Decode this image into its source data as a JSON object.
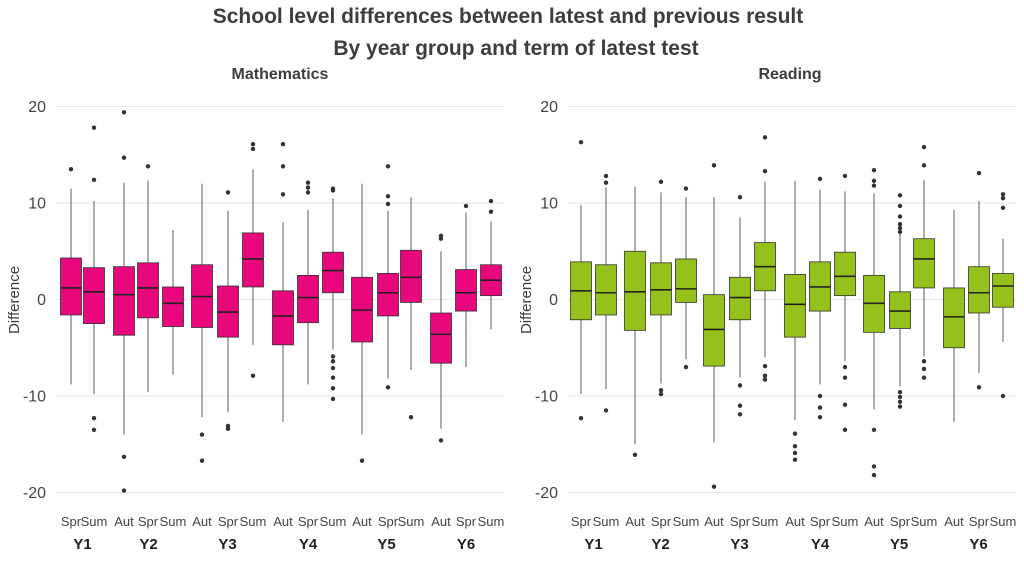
{
  "figure": {
    "title": "School level differences between latest and previous result",
    "subtitle": "By year group and term of latest test"
  },
  "chart_data": [
    {
      "type": "box",
      "title": "Mathematics",
      "ylabel": "Difference",
      "ylim": [
        -22,
        21
      ],
      "yticks": [
        20,
        10,
        0,
        -10,
        -20
      ],
      "grid": true,
      "color": "#e8077c",
      "categories": [
        {
          "year": "Y1",
          "term": "Spr",
          "whislo": -8.8,
          "q1": -1.6,
          "med": 1.2,
          "q3": 4.3,
          "whishi": 11.5,
          "fliers": [
            13.5
          ]
        },
        {
          "year": "Y1",
          "term": "Sum",
          "whislo": -9.8,
          "q1": -2.5,
          "med": 0.8,
          "q3": 3.3,
          "whishi": 10.2,
          "fliers": [
            17.8,
            12.4,
            -12.3,
            -13.5
          ]
        },
        {
          "year": "Y2",
          "term": "Aut",
          "whislo": -14.0,
          "q1": -3.7,
          "med": 0.5,
          "q3": 3.4,
          "whishi": 12.1,
          "fliers": [
            19.4,
            14.7,
            -16.3,
            -19.8
          ]
        },
        {
          "year": "Y2",
          "term": "Spr",
          "whislo": -9.6,
          "q1": -1.9,
          "med": 1.2,
          "q3": 3.8,
          "whishi": 12.3,
          "fliers": [
            13.8
          ]
        },
        {
          "year": "Y2",
          "term": "Sum",
          "whislo": -7.8,
          "q1": -2.8,
          "med": -0.4,
          "q3": 1.3,
          "whishi": 7.2,
          "fliers": []
        },
        {
          "year": "Y3",
          "term": "Aut",
          "whislo": -12.2,
          "q1": -2.9,
          "med": 0.3,
          "q3": 3.6,
          "whishi": 12.0,
          "fliers": [
            -14.0,
            -16.7
          ]
        },
        {
          "year": "Y3",
          "term": "Spr",
          "whislo": -11.7,
          "q1": -3.9,
          "med": -1.3,
          "q3": 1.4,
          "whishi": 9.2,
          "fliers": [
            11.1,
            -13.1,
            -13.4
          ]
        },
        {
          "year": "Y3",
          "term": "Sum",
          "whislo": -4.7,
          "q1": 1.3,
          "med": 4.2,
          "q3": 6.9,
          "whishi": 13.5,
          "fliers": [
            16.1,
            15.6,
            -7.9
          ]
        },
        {
          "year": "Y4",
          "term": "Aut",
          "whislo": -12.7,
          "q1": -4.7,
          "med": -1.7,
          "q3": 0.9,
          "whishi": 8.0,
          "fliers": [
            16.1,
            13.8,
            10.9
          ]
        },
        {
          "year": "Y4",
          "term": "Spr",
          "whislo": -8.8,
          "q1": -2.4,
          "med": 0.2,
          "q3": 2.5,
          "whishi": 9.3,
          "fliers": [
            12.1,
            11.6,
            11.1
          ]
        },
        {
          "year": "Y4",
          "term": "Sum",
          "whislo": -5.2,
          "q1": 0.7,
          "med": 3.0,
          "q3": 4.9,
          "whishi": 10.5,
          "fliers": [
            11.5,
            11.3,
            -5.9,
            -6.4,
            -7.1,
            -8.1,
            -9.2,
            -10.3
          ]
        },
        {
          "year": "Y5",
          "term": "Aut",
          "whislo": -14.0,
          "q1": -4.4,
          "med": -1.1,
          "q3": 2.3,
          "whishi": 12.0,
          "fliers": [
            -16.7
          ]
        },
        {
          "year": "Y5",
          "term": "Spr",
          "whislo": -8.2,
          "q1": -1.7,
          "med": 0.7,
          "q3": 2.7,
          "whishi": 9.2,
          "fliers": [
            13.8,
            10.7,
            9.9,
            -9.1
          ]
        },
        {
          "year": "Y5",
          "term": "Sum",
          "whislo": -7.3,
          "q1": -0.3,
          "med": 2.3,
          "q3": 5.1,
          "whishi": 10.6,
          "fliers": [
            -12.2
          ]
        },
        {
          "year": "Y6",
          "term": "Aut",
          "whislo": -13.4,
          "q1": -6.6,
          "med": -3.6,
          "q3": -1.4,
          "whishi": 5.0,
          "fliers": [
            6.6,
            6.3,
            -14.6
          ]
        },
        {
          "year": "Y6",
          "term": "Spr",
          "whislo": -7.0,
          "q1": -1.2,
          "med": 0.7,
          "q3": 3.1,
          "whishi": 9.0,
          "fliers": [
            9.7
          ]
        },
        {
          "year": "Y6",
          "term": "Sum",
          "whislo": -3.1,
          "q1": 0.4,
          "med": 2.0,
          "q3": 3.6,
          "whishi": 8.1,
          "fliers": [
            10.2,
            9.1
          ]
        }
      ]
    },
    {
      "type": "box",
      "title": "Reading",
      "ylabel": "Difference",
      "ylim": [
        -22,
        21
      ],
      "yticks": [
        20,
        10,
        0,
        -10,
        -20
      ],
      "grid": true,
      "color": "#94c11c",
      "categories": [
        {
          "year": "Y1",
          "term": "Spr",
          "whislo": -9.8,
          "q1": -2.1,
          "med": 0.9,
          "q3": 3.9,
          "whishi": 9.8,
          "fliers": [
            16.3,
            -12.3
          ]
        },
        {
          "year": "Y1",
          "term": "Sum",
          "whislo": -9.3,
          "q1": -1.6,
          "med": 0.7,
          "q3": 3.6,
          "whishi": 11.6,
          "fliers": [
            12.8,
            12.1,
            -11.5
          ]
        },
        {
          "year": "Y2",
          "term": "Aut",
          "whislo": -15.0,
          "q1": -3.2,
          "med": 0.8,
          "q3": 5.0,
          "whishi": 11.7,
          "fliers": [
            -16.1
          ]
        },
        {
          "year": "Y2",
          "term": "Spr",
          "whislo": -8.7,
          "q1": -1.6,
          "med": 1.0,
          "q3": 3.8,
          "whishi": 11.1,
          "fliers": [
            12.2,
            -9.4,
            -9.8
          ]
        },
        {
          "year": "Y2",
          "term": "Sum",
          "whislo": -6.2,
          "q1": -0.3,
          "med": 1.1,
          "q3": 4.2,
          "whishi": 10.6,
          "fliers": [
            11.5,
            -7.0
          ]
        },
        {
          "year": "Y3",
          "term": "Aut",
          "whislo": -14.8,
          "q1": -6.9,
          "med": -3.1,
          "q3": 0.5,
          "whishi": 10.6,
          "fliers": [
            13.9,
            -19.4
          ]
        },
        {
          "year": "Y3",
          "term": "Spr",
          "whislo": -8.1,
          "q1": -2.1,
          "med": 0.2,
          "q3": 2.3,
          "whishi": 8.5,
          "fliers": [
            10.6,
            -8.9,
            -11.0,
            -11.9
          ]
        },
        {
          "year": "Y3",
          "term": "Sum",
          "whislo": -6.0,
          "q1": 0.9,
          "med": 3.4,
          "q3": 5.9,
          "whishi": 12.2,
          "fliers": [
            16.8,
            13.3,
            -6.9,
            -7.9,
            -8.3
          ]
        },
        {
          "year": "Y4",
          "term": "Aut",
          "whislo": -12.5,
          "q1": -3.9,
          "med": -0.5,
          "q3": 2.6,
          "whishi": 12.3,
          "fliers": [
            -13.9,
            -15.2,
            -15.9,
            -16.6
          ]
        },
        {
          "year": "Y4",
          "term": "Spr",
          "whislo": -8.8,
          "q1": -1.2,
          "med": 1.3,
          "q3": 3.9,
          "whishi": 11.4,
          "fliers": [
            12.5,
            -10.0,
            -11.2,
            -12.2
          ]
        },
        {
          "year": "Y4",
          "term": "Sum",
          "whislo": -6.4,
          "q1": 0.4,
          "med": 2.4,
          "q3": 4.9,
          "whishi": 11.2,
          "fliers": [
            12.8,
            -7.0,
            -8.1,
            -10.9,
            -13.5
          ]
        },
        {
          "year": "Y5",
          "term": "Aut",
          "whislo": -11.4,
          "q1": -3.4,
          "med": -0.4,
          "q3": 2.5,
          "whishi": 11.0,
          "fliers": [
            13.4,
            12.3,
            11.8,
            -13.5,
            -17.3,
            -18.2
          ]
        },
        {
          "year": "Y5",
          "term": "Spr",
          "whislo": -9.0,
          "q1": -3.0,
          "med": -1.2,
          "q3": 0.8,
          "whishi": 6.8,
          "fliers": [
            10.8,
            9.7,
            8.6,
            7.8,
            7.4,
            7.0,
            -9.6,
            -10.1,
            -10.6,
            -11.1
          ]
        },
        {
          "year": "Y5",
          "term": "Sum",
          "whislo": -5.9,
          "q1": 1.2,
          "med": 4.2,
          "q3": 6.3,
          "whishi": 12.4,
          "fliers": [
            15.8,
            13.9,
            -6.4,
            -7.2,
            -8.1
          ]
        },
        {
          "year": "Y6",
          "term": "Aut",
          "whislo": -12.7,
          "q1": -5.0,
          "med": -1.8,
          "q3": 1.2,
          "whishi": 9.3,
          "fliers": []
        },
        {
          "year": "Y6",
          "term": "Spr",
          "whislo": -7.6,
          "q1": -1.4,
          "med": 0.7,
          "q3": 3.4,
          "whishi": 10.2,
          "fliers": [
            13.1,
            -9.1
          ]
        },
        {
          "year": "Y6",
          "term": "Sum",
          "whislo": -4.4,
          "q1": -0.8,
          "med": 1.4,
          "q3": 2.7,
          "whishi": 6.3,
          "fliers": [
            10.9,
            10.5,
            9.5,
            -10.0
          ]
        }
      ]
    }
  ]
}
